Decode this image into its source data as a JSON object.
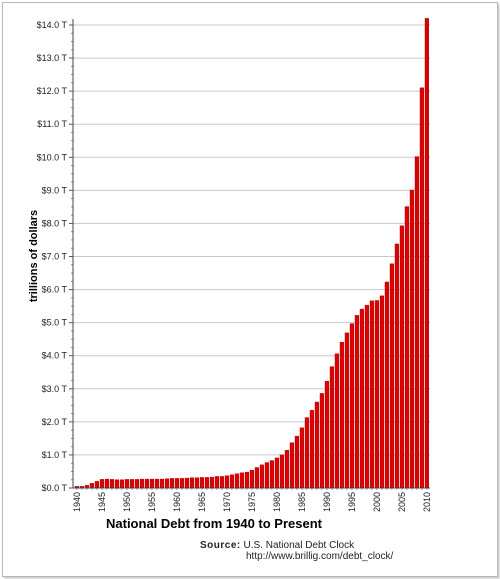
{
  "chart_data": {
    "type": "bar",
    "title": "National Debt from 1940 to Present",
    "ylabel": "trillions of dollars",
    "xlabel": "",
    "ylim": [
      0,
      14
    ],
    "y_ticks": [
      "$0.0 T",
      "$1.0 T",
      "$2.0 T",
      "$3.0 T",
      "$4.0 T",
      "$5.0 T",
      "$6.0 T",
      "$7.0 T",
      "$8.0 T",
      "$9.0 T",
      "$10.0 T",
      "$11.0 T",
      "$12.0 T",
      "$13.0 T",
      "$14.0 T"
    ],
    "x_ticks": [
      "1940",
      "1945",
      "1950",
      "1955",
      "1960",
      "1965",
      "1970",
      "1975",
      "1980",
      "1985",
      "1990",
      "1995",
      "2000",
      "2005",
      "2010"
    ],
    "grid": true,
    "bar_color": "#e00000",
    "categories": [
      1940,
      1941,
      1942,
      1943,
      1944,
      1945,
      1946,
      1947,
      1948,
      1949,
      1950,
      1951,
      1952,
      1953,
      1954,
      1955,
      1956,
      1957,
      1958,
      1959,
      1960,
      1961,
      1962,
      1963,
      1964,
      1965,
      1966,
      1967,
      1968,
      1969,
      1970,
      1971,
      1972,
      1973,
      1974,
      1975,
      1976,
      1977,
      1978,
      1979,
      1980,
      1981,
      1982,
      1983,
      1984,
      1985,
      1986,
      1987,
      1988,
      1989,
      1990,
      1991,
      1992,
      1993,
      1994,
      1995,
      1996,
      1997,
      1998,
      1999,
      2000,
      2001,
      2002,
      2003,
      2004,
      2005,
      2006,
      2007,
      2008,
      2009,
      2010
    ],
    "values": [
      0.05,
      0.05,
      0.08,
      0.14,
      0.2,
      0.26,
      0.27,
      0.26,
      0.25,
      0.25,
      0.26,
      0.26,
      0.26,
      0.27,
      0.27,
      0.27,
      0.27,
      0.27,
      0.28,
      0.29,
      0.29,
      0.29,
      0.3,
      0.31,
      0.31,
      0.32,
      0.32,
      0.33,
      0.35,
      0.35,
      0.37,
      0.4,
      0.43,
      0.46,
      0.48,
      0.54,
      0.62,
      0.7,
      0.77,
      0.83,
      0.91,
      1.0,
      1.14,
      1.37,
      1.57,
      1.82,
      2.13,
      2.35,
      2.6,
      2.86,
      3.23,
      3.67,
      4.06,
      4.41,
      4.69,
      4.97,
      5.22,
      5.41,
      5.53,
      5.66,
      5.67,
      5.81,
      6.23,
      6.78,
      7.38,
      7.93,
      8.51,
      9.01,
      10.02,
      12.1,
      14.2
    ]
  },
  "source": {
    "label": "Source:",
    "name": "U.S. National Debt Clock",
    "url": "http://www.brillig.com/debt_clock/"
  }
}
